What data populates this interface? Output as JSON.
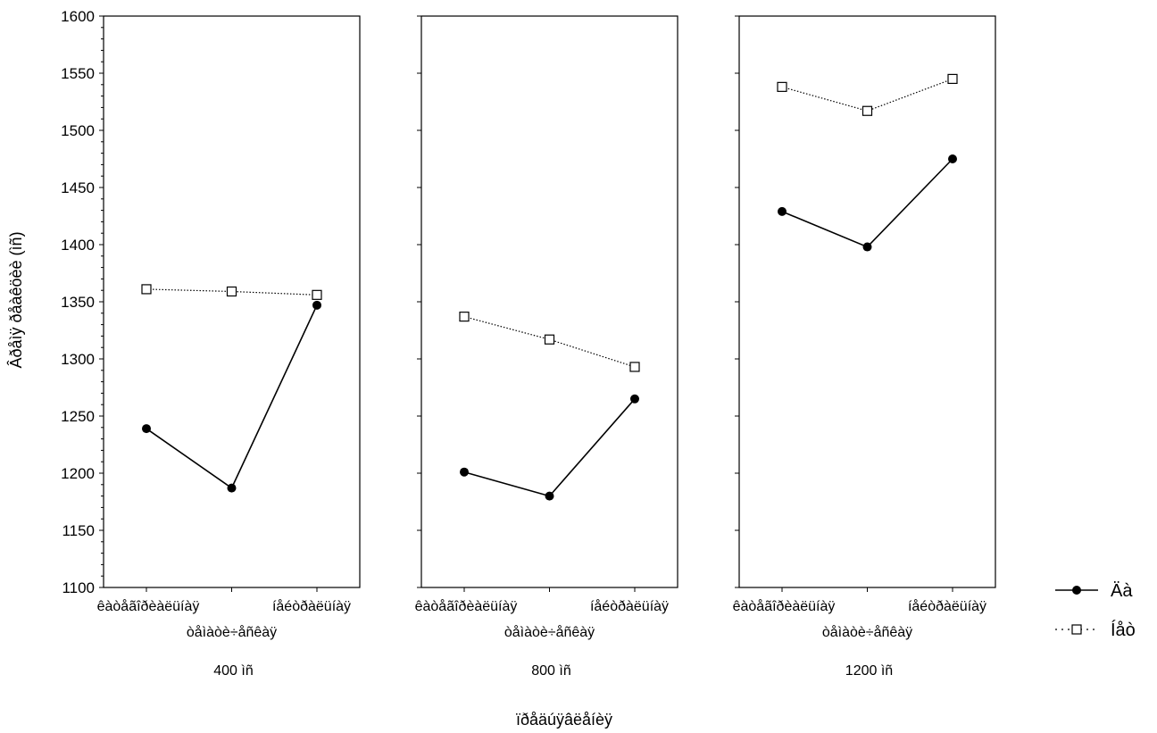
{
  "chart_data": {
    "type": "line",
    "ylabel": "Âðåìÿ ðåàêöèè (ìñ)",
    "xlabel": "ïðåäúÿâëåíèÿ",
    "ylim": [
      1100,
      1600
    ],
    "yticks": [
      1100,
      1150,
      1200,
      1250,
      1300,
      1350,
      1400,
      1450,
      1500,
      1550,
      1600
    ],
    "categories": [
      "êàòåãîðèàëüíàÿ",
      "òåìàòè÷åñêàÿ",
      "íåéòðàëüíàÿ"
    ],
    "panels": [
      {
        "label": "400 ìñ",
        "series": [
          {
            "name": "Äà",
            "values": [
              1239,
              1187,
              1347
            ]
          },
          {
            "name": "Íåò",
            "values": [
              1361,
              1359,
              1356
            ]
          }
        ]
      },
      {
        "label": "800 ìñ",
        "series": [
          {
            "name": "Äà",
            "values": [
              1201,
              1180,
              1265
            ]
          },
          {
            "name": "Íåò",
            "values": [
              1337,
              1317,
              1293
            ]
          }
        ]
      },
      {
        "label": "1200 ìñ",
        "series": [
          {
            "name": "Äà",
            "values": [
              1429,
              1398,
              1475
            ]
          },
          {
            "name": "Íåò",
            "values": [
              1538,
              1517,
              1545
            ]
          }
        ]
      }
    ],
    "legend": {
      "placement": "right",
      "entries": [
        {
          "name": "Äà",
          "marker": "filled-circle",
          "line": "solid"
        },
        {
          "name": "Íåò",
          "marker": "open-square",
          "line": "dotted"
        }
      ]
    },
    "grid": false
  }
}
